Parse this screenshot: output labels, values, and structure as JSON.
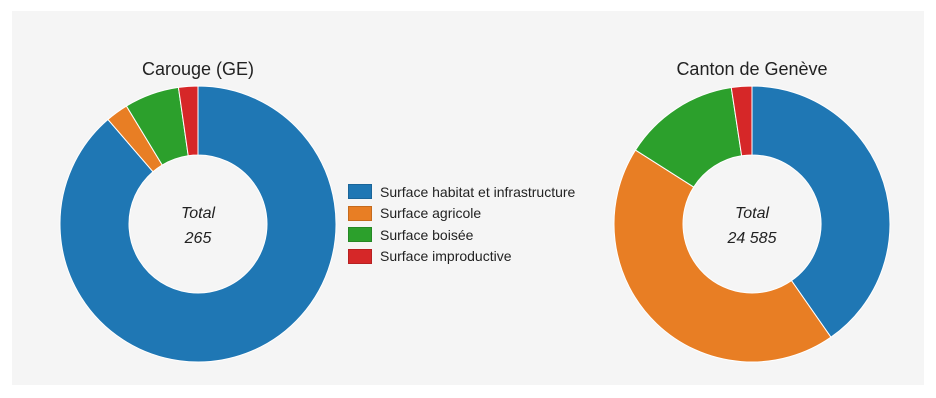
{
  "colors": {
    "habitat": "#1f77b4",
    "agricole": "#e87e24",
    "boisee": "#2ca02c",
    "improductive": "#d62728"
  },
  "legend": [
    {
      "label": "Surface habitat et infrastructure",
      "color": "#1f77b4"
    },
    {
      "label": "Surface agricole",
      "color": "#e87e24"
    },
    {
      "label": "Surface boisée",
      "color": "#2ca02c"
    },
    {
      "label": "Surface improductive",
      "color": "#d62728"
    }
  ],
  "chart_data": [
    {
      "type": "pie",
      "title": "Carouge (GE)",
      "center_label": "Total",
      "center_value": "265",
      "categories": [
        "Surface habitat et infrastructure",
        "Surface agricole",
        "Surface boisée",
        "Surface improductive"
      ],
      "values": [
        235,
        7,
        17,
        6
      ]
    },
    {
      "type": "pie",
      "title": "Canton de Genève",
      "center_label": "Total",
      "center_value": "24 585",
      "categories": [
        "Surface habitat et infrastructure",
        "Surface agricole",
        "Surface boisée",
        "Surface improductive"
      ],
      "values": [
        9910,
        10740,
        3345,
        590
      ]
    }
  ]
}
